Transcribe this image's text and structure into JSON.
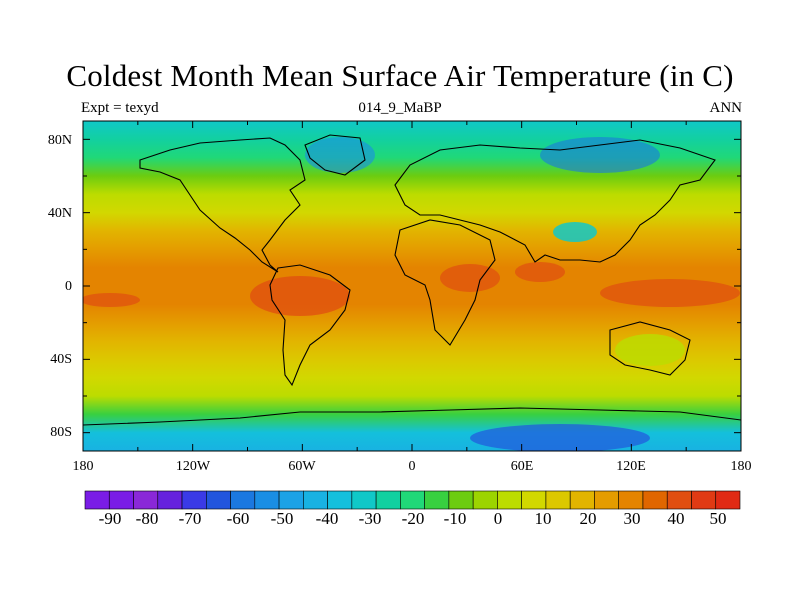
{
  "title": "Coldest Month Mean Surface Air Temperature (in C)",
  "subtitle_left": "Expt = texyd",
  "subtitle_center": "014_9_MaBP",
  "subtitle_right": "ANN",
  "y_axis_labels": [
    "80N",
    "40N",
    "0",
    "40S",
    "80S"
  ],
  "x_axis_labels": [
    "180",
    "120W",
    "60W",
    "0",
    "60E",
    "120E",
    "180"
  ],
  "colorbar": {
    "labels": [
      "-90",
      "-80",
      "-70",
      "-60",
      "-50",
      "-40",
      "-30",
      "-20",
      "-10",
      "0",
      "10",
      "20",
      "30",
      "40",
      "50"
    ],
    "colors": [
      "#7a1de6",
      "#7a1de6",
      "#8a28d8",
      "#6622dd",
      "#3a3ae6",
      "#2255dd",
      "#1b78e0",
      "#1a8ee4",
      "#1ca2e6",
      "#18b2e2",
      "#14c0dc",
      "#10c8c8",
      "#12d0a0",
      "#20d878",
      "#38d040",
      "#6ccc10",
      "#9cd400",
      "#bcdc00",
      "#d2d800",
      "#dcc800",
      "#e2b400",
      "#e49c00",
      "#e48400",
      "#e06600",
      "#e04e10",
      "#e03a14",
      "#e02a14"
    ]
  },
  "map_data": {
    "projection": "cylindrical-equidistant",
    "lon_range": [
      -180,
      180
    ],
    "lat_range": [
      -90,
      90
    ],
    "variable": "coldest month mean surface air temperature",
    "units": "C",
    "zonal_bands": [
      {
        "lat": 90,
        "value": -30
      },
      {
        "lat": 80,
        "value": -25
      },
      {
        "lat": 70,
        "value": -20
      },
      {
        "lat": 60,
        "value": -10
      },
      {
        "lat": 50,
        "value": 0
      },
      {
        "lat": 40,
        "value": 10
      },
      {
        "lat": 30,
        "value": 20
      },
      {
        "lat": 20,
        "value": 27
      },
      {
        "lat": 10,
        "value": 30
      },
      {
        "lat": 0,
        "value": 31
      },
      {
        "lat": -10,
        "value": 30
      },
      {
        "lat": -20,
        "value": 25
      },
      {
        "lat": -30,
        "value": 20
      },
      {
        "lat": -40,
        "value": 15
      },
      {
        "lat": -50,
        "value": 8
      },
      {
        "lat": -60,
        "value": 0
      },
      {
        "lat": -70,
        "value": -15
      },
      {
        "lat": -80,
        "value": -35
      },
      {
        "lat": -90,
        "value": -40
      }
    ]
  }
}
